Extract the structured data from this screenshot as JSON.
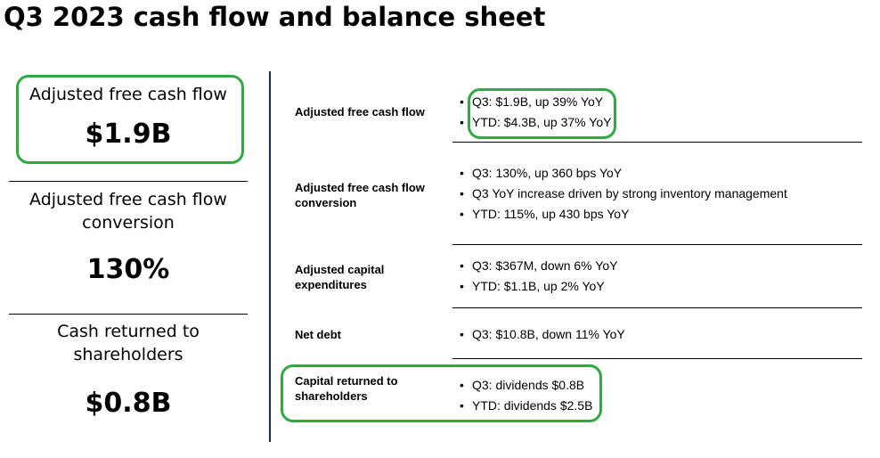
{
  "page": {
    "title": "Q3 2023 cash flow and balance sheet"
  },
  "kpis": [
    {
      "label": "Adjusted free cash flow",
      "value": "$1.9B"
    },
    {
      "label_line1": "Adjusted free cash flow",
      "label_line2": "conversion",
      "value": "130%"
    },
    {
      "label_line1": "Cash returned to",
      "label_line2": "shareholders",
      "value": "$0.8B"
    }
  ],
  "rows": [
    {
      "label_line1": "Adjusted free cash flow",
      "label_line2": "",
      "bullets": [
        "Q3: $1.9B, up 39% YoY",
        "YTD: $4.3B, up 37% YoY"
      ]
    },
    {
      "label_line1": "Adjusted free cash flow",
      "label_line2": "conversion",
      "bullets": [
        "Q3: 130%, up 360 bps YoY",
        "Q3 YoY increase driven by strong inventory management",
        "YTD: 115%, up 430 bps YoY"
      ]
    },
    {
      "label_line1": "Adjusted capital",
      "label_line2": "expenditures",
      "bullets": [
        "Q3: $367M, down 6% YoY",
        "YTD: $1.1B, up 2% YoY"
      ]
    },
    {
      "label_line1": "Net debt",
      "label_line2": "",
      "bullets": [
        "Q3: $10.8B, down 11% YoY"
      ]
    },
    {
      "label_line1": "Capital returned to",
      "label_line2": "shareholders",
      "bullets": [
        "Q3: dividends $0.8B",
        "YTD: dividends $2.5B"
      ]
    }
  ],
  "highlight_color": "#2eaa3e",
  "bullet_char": "•"
}
